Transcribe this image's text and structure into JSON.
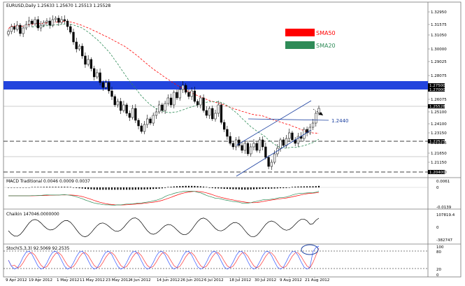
{
  "main": {
    "symbol_info": "EURUSD,Daily  1.25633 1.25670 1.25513 1.25528",
    "legend": [
      {
        "label": "SMA50",
        "color": "#ff0000"
      },
      {
        "label": "SMA20",
        "color": "#2e8b57"
      }
    ],
    "annotation": "1.2440",
    "price_labels": [
      "1.32950",
      "1.31575",
      "1.31050",
      "1.30000",
      "1.29025",
      "1.28075",
      "1.27500",
      "1.27000",
      "1.26075",
      "1.25528",
      "1.25100",
      "1.24100",
      "1.23150",
      "1.22525",
      "1.21650",
      "1.21150",
      "1.20400"
    ],
    "price_tag_current": "1.25528",
    "price_tag_upper_zone": "1.27500",
    "price_tag_lower_zone": "1.27000",
    "price_tag_support": "1.22525",
    "price_tag_low": "1.20400"
  },
  "macd": {
    "title": "MACD Traditional 0.0046 0.0009 0.0037",
    "labels": [
      "0.0061",
      "0",
      "-0.0139"
    ]
  },
  "chaikin": {
    "title": "Chaikin 147046.0000000",
    "labels": [
      "107819.4",
      "0",
      "-382747"
    ]
  },
  "stoch": {
    "title": "Stoch(5,3,3) 92.5069 92.2535",
    "labels": [
      "100",
      "80",
      "20",
      "0"
    ]
  },
  "x_axis": {
    "labels": [
      "9 Apr 2012",
      "19 Apr 2012",
      "1 May 2012",
      "11 May 2012",
      "23 May 2012",
      "4 Jun 2012",
      "14 Jun 2012",
      "26 Jun 2012",
      "6 Jul 2012",
      "18 Jul 2012",
      "30 Jul 2012",
      "9 Aug 2012",
      "21 Aug 2012"
    ]
  },
  "colors": {
    "resistance_zone": "#2244dd",
    "candle": "#000000",
    "sma50": "#ff0000",
    "sma20": "#2e8b57",
    "channel": "#1a3fa0",
    "stoch_k": "#3355ff",
    "stoch_d": "#ff3333"
  }
}
